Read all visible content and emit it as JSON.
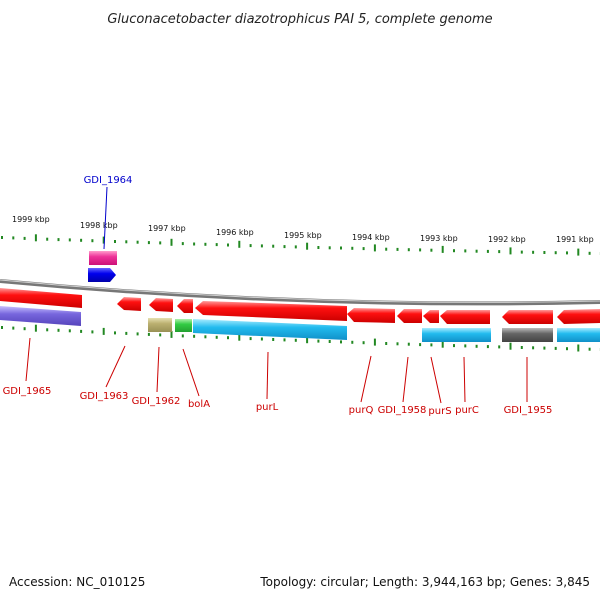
{
  "title": "Gluconacetobacter diazotrophicus PAI 5, complete genome",
  "footer": {
    "accession": "Accession: NC_010125",
    "summary": "Topology: circular; Length: 3,944,163 bp; Genes: 3,845"
  },
  "colors": {
    "forward_gene": "#ee0000",
    "forward_gene_highlight": "#ff8888",
    "cds_blue": "#22bbee",
    "cds_gray": "#666666",
    "cds_purple": "#7766dd",
    "cds_khaki": "#bbb070",
    "cds_green": "#33cc44",
    "pink_gene": "#ee3399",
    "blue_gene": "#0000ee",
    "backbone": "#888888",
    "tick": "#228822",
    "label_red": "#cc0000",
    "label_blue": "#0000cc"
  },
  "chart_data": {
    "type": "genome-map",
    "ticks_kbp": [
      {
        "label": "1999 kbp"
      },
      {
        "label": "1998 kbp"
      },
      {
        "label": "1997 kbp"
      },
      {
        "label": "1996 kbp"
      },
      {
        "label": "1995 kbp"
      },
      {
        "label": "1994 kbp"
      },
      {
        "label": "1993 kbp"
      },
      {
        "label": "1992 kbp"
      },
      {
        "label": "1991 kbp"
      }
    ],
    "genes": [
      {
        "label": "GDI_1965",
        "color": "red"
      },
      {
        "label": "GDI_1964",
        "color": "blue"
      },
      {
        "label": "GDI_1963",
        "color": "red"
      },
      {
        "label": "GDI_1962",
        "color": "red"
      },
      {
        "label": "bolA",
        "color": "red"
      },
      {
        "label": "purL",
        "color": "red"
      },
      {
        "label": "purQ",
        "color": "red"
      },
      {
        "label": "GDI_1958",
        "color": "red"
      },
      {
        "label": "purS",
        "color": "red"
      },
      {
        "label": "purC",
        "color": "red"
      },
      {
        "label": "GDI_1955",
        "color": "red"
      }
    ]
  }
}
